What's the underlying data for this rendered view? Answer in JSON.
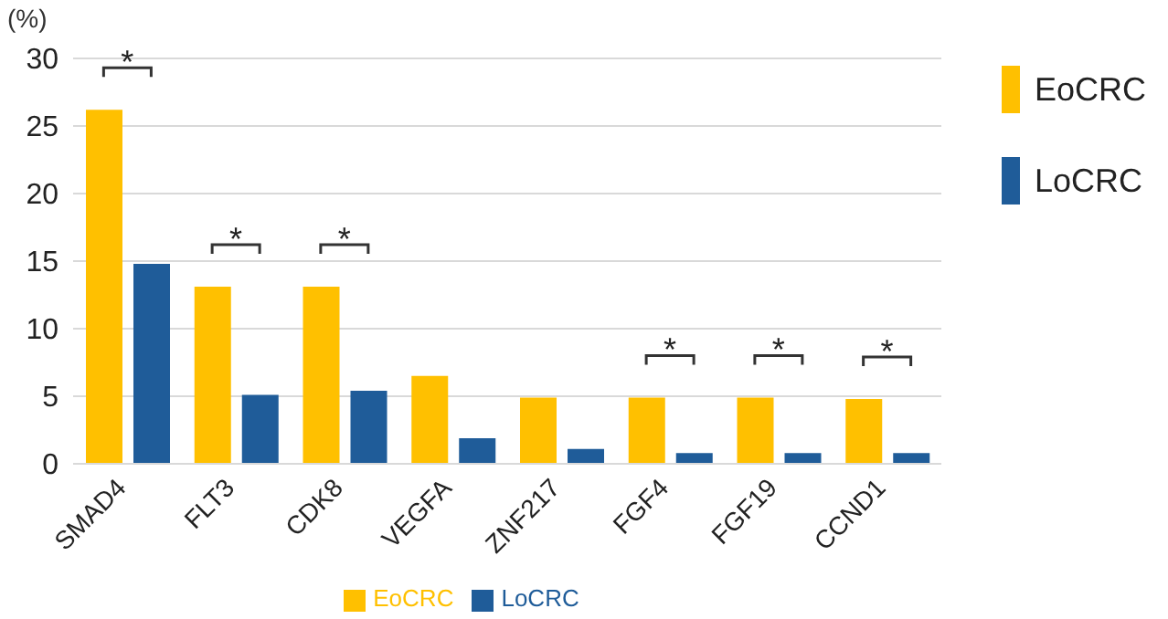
{
  "chart_data": {
    "type": "bar",
    "ylabel": "(%)",
    "categories": [
      "SMAD4",
      "FLT3",
      "CDK8",
      "VEGFA",
      "ZNF217",
      "FGF4",
      "FGF19",
      "CCND1"
    ],
    "series": [
      {
        "name": "EoCRC",
        "color": "#ffc000",
        "values": [
          26.2,
          13.1,
          13.1,
          6.5,
          4.9,
          4.9,
          4.9,
          4.8
        ]
      },
      {
        "name": "LoCRC",
        "color": "#1f5c99",
        "values": [
          14.8,
          5.1,
          5.4,
          1.9,
          1.1,
          0.8,
          0.8,
          0.8
        ]
      }
    ],
    "ylim": [
      0,
      30
    ],
    "yticks": [
      0,
      5,
      10,
      15,
      20,
      25,
      30
    ],
    "grid": "y",
    "legend": "bottom",
    "annotations": [
      {
        "text": "*",
        "x": "SMAD4",
        "y": 26.2
      },
      {
        "text": "*",
        "x": "FLT3",
        "y": 13.1
      },
      {
        "text": "*",
        "x": "CDK8",
        "y": 13.1
      },
      {
        "text": "*",
        "x": "FGF4",
        "y": 4.9
      },
      {
        "text": "*",
        "x": "FGF19",
        "y": 4.9
      },
      {
        "text": "*",
        "x": "CCND1",
        "y": 4.8
      }
    ]
  }
}
